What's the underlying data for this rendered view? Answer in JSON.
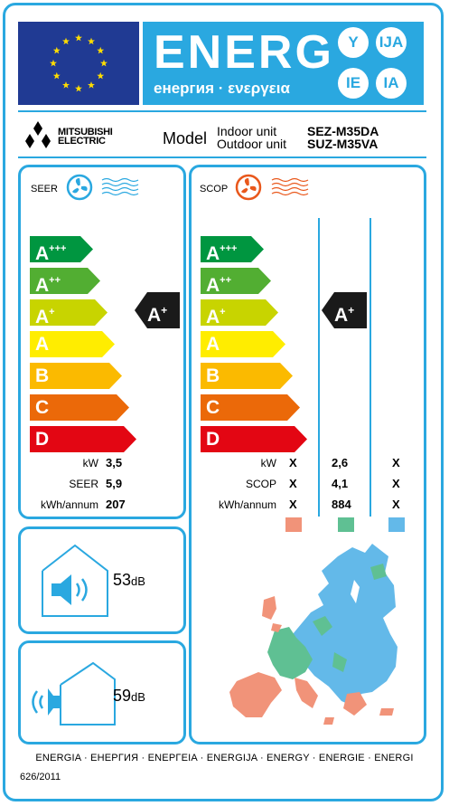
{
  "header": {
    "energ": "ENERG",
    "subtitle": "енергия · ενεργεια",
    "languages": [
      "Y",
      "IJA",
      "IE",
      "IA"
    ]
  },
  "supplier": {
    "brand_line1": "MITSUBISHI",
    "brand_line2": "ELECTRIC"
  },
  "model": {
    "label": "Model",
    "indoor_label": "Indoor unit",
    "outdoor_label": "Outdoor unit",
    "indoor_value": "SEZ-M35DA",
    "outdoor_value": "SUZ-M35VA"
  },
  "classes": [
    "A",
    "A",
    "A",
    "A",
    "B",
    "C",
    "D"
  ],
  "class_plus": [
    "+++",
    "++",
    "+",
    "",
    "",
    "",
    ""
  ],
  "class_colors": [
    "#009640",
    "#52ae32",
    "#c8d400",
    "#ffed00",
    "#fbba00",
    "#eb6909",
    "#e30613"
  ],
  "seer": {
    "title": "SEER",
    "rating": "A",
    "rating_plus": "+",
    "rows": [
      {
        "label": "kW",
        "value": "3,5"
      },
      {
        "label": "SEER",
        "value": "5,9"
      },
      {
        "label": "kWh/annum",
        "value": "207"
      }
    ]
  },
  "scop": {
    "title": "SCOP",
    "rating": "A",
    "rating_plus": "+",
    "row_labels": [
      "kW",
      "SCOP",
      "kWh/annum"
    ],
    "columns": [
      {
        "values": [
          "X",
          "X",
          "X"
        ],
        "color": "#f19379"
      },
      {
        "values": [
          "2,6",
          "4,1",
          "884"
        ],
        "color": "#5fc093"
      },
      {
        "values": [
          "X",
          "X",
          "X"
        ],
        "color": "#63b9e9"
      }
    ]
  },
  "noise_indoor": {
    "value": "53",
    "unit": "dB"
  },
  "noise_outdoor": {
    "value": "59",
    "unit": "dB"
  },
  "footer": {
    "languages": "ENERGIA · ЕНЕРГИЯ · ΕΝΕΡΓΕΙΑ · ENERGIJA · ENERGY · ENERGIE · ENERGI",
    "regulation": "626/2011"
  },
  "colors": {
    "border": "#2aa8e0",
    "eu_blue": "#203a93",
    "eu_star": "#ffdd00",
    "rating_black": "#1a1a1a"
  }
}
